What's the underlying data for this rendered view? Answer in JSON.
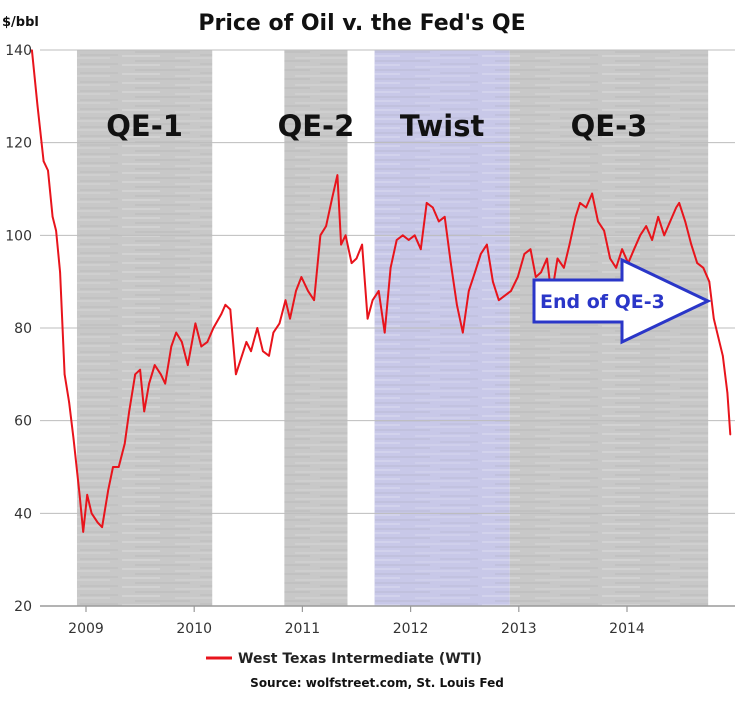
{
  "chart_data": {
    "type": "line",
    "title": "Price of Oil v. the Fed's QE",
    "ylabel": "$/bbl",
    "xlabel": "",
    "ylim": [
      20,
      140
    ],
    "y_ticks": [
      20,
      40,
      60,
      80,
      100,
      120,
      140
    ],
    "x_tick_labels": [
      "2009",
      "2010",
      "2011",
      "2012",
      "2013",
      "2014"
    ],
    "x_range": [
      "2008-07",
      "2014-12"
    ],
    "grid": "horizontal",
    "legend": "bottom-center",
    "series": [
      {
        "name": "West Texas Intermediate (WTI)",
        "color": "#e8141c",
        "points": [
          [
            "2008-07-01",
            140
          ],
          [
            "2008-07-20",
            128
          ],
          [
            "2008-08-10",
            116
          ],
          [
            "2008-08-25",
            114
          ],
          [
            "2008-09-10",
            104
          ],
          [
            "2008-09-22",
            101
          ],
          [
            "2008-10-05",
            92
          ],
          [
            "2008-10-20",
            70
          ],
          [
            "2008-11-05",
            64
          ],
          [
            "2008-11-20",
            56
          ],
          [
            "2008-12-10",
            44
          ],
          [
            "2008-12-22",
            36
          ],
          [
            "2009-01-05",
            44
          ],
          [
            "2009-01-20",
            40
          ],
          [
            "2009-02-10",
            38
          ],
          [
            "2009-02-25",
            37
          ],
          [
            "2009-03-15",
            45
          ],
          [
            "2009-04-01",
            50
          ],
          [
            "2009-04-20",
            50
          ],
          [
            "2009-05-10",
            55
          ],
          [
            "2009-05-25",
            62
          ],
          [
            "2009-06-15",
            70
          ],
          [
            "2009-07-01",
            71
          ],
          [
            "2009-07-15",
            62
          ],
          [
            "2009-08-01",
            68
          ],
          [
            "2009-08-20",
            72
          ],
          [
            "2009-09-10",
            70
          ],
          [
            "2009-09-25",
            68
          ],
          [
            "2009-10-15",
            76
          ],
          [
            "2009-11-01",
            79
          ],
          [
            "2009-11-20",
            77
          ],
          [
            "2009-12-10",
            72
          ],
          [
            "2010-01-05",
            81
          ],
          [
            "2010-01-25",
            76
          ],
          [
            "2010-02-15",
            77
          ],
          [
            "2010-03-05",
            80
          ],
          [
            "2010-04-01",
            83
          ],
          [
            "2010-04-15",
            85
          ],
          [
            "2010-05-01",
            84
          ],
          [
            "2010-05-20",
            70
          ],
          [
            "2010-06-10",
            74
          ],
          [
            "2010-06-25",
            77
          ],
          [
            "2010-07-10",
            75
          ],
          [
            "2010-08-01",
            80
          ],
          [
            "2010-08-20",
            75
          ],
          [
            "2010-09-10",
            74
          ],
          [
            "2010-09-25",
            79
          ],
          [
            "2010-10-15",
            81
          ],
          [
            "2010-11-05",
            86
          ],
          [
            "2010-11-20",
            82
          ],
          [
            "2010-12-10",
            88
          ],
          [
            "2010-12-28",
            91
          ],
          [
            "2011-01-20",
            88
          ],
          [
            "2011-02-10",
            86
          ],
          [
            "2011-03-01",
            100
          ],
          [
            "2011-03-20",
            102
          ],
          [
            "2011-04-10",
            108
          ],
          [
            "2011-04-28",
            113
          ],
          [
            "2011-05-10",
            98
          ],
          [
            "2011-05-25",
            100
          ],
          [
            "2011-06-15",
            94
          ],
          [
            "2011-07-01",
            95
          ],
          [
            "2011-07-20",
            98
          ],
          [
            "2011-08-08",
            82
          ],
          [
            "2011-08-25",
            86
          ],
          [
            "2011-09-15",
            88
          ],
          [
            "2011-10-05",
            79
          ],
          [
            "2011-10-25",
            93
          ],
          [
            "2011-11-15",
            99
          ],
          [
            "2011-12-05",
            100
          ],
          [
            "2011-12-25",
            99
          ],
          [
            "2012-01-15",
            100
          ],
          [
            "2012-02-05",
            97
          ],
          [
            "2012-02-25",
            107
          ],
          [
            "2012-03-15",
            106
          ],
          [
            "2012-04-05",
            103
          ],
          [
            "2012-04-25",
            104
          ],
          [
            "2012-05-15",
            94
          ],
          [
            "2012-06-05",
            85
          ],
          [
            "2012-06-25",
            79
          ],
          [
            "2012-07-15",
            88
          ],
          [
            "2012-08-05",
            92
          ],
          [
            "2012-08-25",
            96
          ],
          [
            "2012-09-15",
            98
          ],
          [
            "2012-10-05",
            90
          ],
          [
            "2012-10-25",
            86
          ],
          [
            "2012-11-15",
            87
          ],
          [
            "2012-12-05",
            88
          ],
          [
            "2012-12-28",
            91
          ],
          [
            "2013-01-20",
            96
          ],
          [
            "2013-02-10",
            97
          ],
          [
            "2013-02-28",
            91
          ],
          [
            "2013-03-15",
            92
          ],
          [
            "2013-04-05",
            95
          ],
          [
            "2013-04-20",
            87
          ],
          [
            "2013-05-10",
            95
          ],
          [
            "2013-06-01",
            93
          ],
          [
            "2013-06-20",
            98
          ],
          [
            "2013-07-10",
            104
          ],
          [
            "2013-07-25",
            107
          ],
          [
            "2013-08-15",
            106
          ],
          [
            "2013-09-05",
            109
          ],
          [
            "2013-09-25",
            103
          ],
          [
            "2013-10-15",
            101
          ],
          [
            "2013-11-05",
            95
          ],
          [
            "2013-11-25",
            93
          ],
          [
            "2013-12-15",
            97
          ],
          [
            "2014-01-05",
            94
          ],
          [
            "2014-01-25",
            97
          ],
          [
            "2014-02-15",
            100
          ],
          [
            "2014-03-05",
            102
          ],
          [
            "2014-03-25",
            99
          ],
          [
            "2014-04-15",
            104
          ],
          [
            "2014-05-05",
            100
          ],
          [
            "2014-05-25",
            103
          ],
          [
            "2014-06-15",
            106
          ],
          [
            "2014-06-25",
            107
          ],
          [
            "2014-07-15",
            103
          ],
          [
            "2014-08-05",
            98
          ],
          [
            "2014-08-25",
            94
          ],
          [
            "2014-09-15",
            93
          ],
          [
            "2014-10-05",
            90
          ],
          [
            "2014-10-20",
            82
          ],
          [
            "2014-11-05",
            78
          ],
          [
            "2014-11-20",
            74
          ],
          [
            "2014-12-05",
            66
          ],
          [
            "2014-12-15",
            57
          ]
        ]
      }
    ],
    "shaded_periods": [
      {
        "label": "QE-1",
        "start": "2008-12",
        "end": "2010-03",
        "color": "#c8c8c8"
      },
      {
        "label": "QE-2",
        "start": "2010-11",
        "end": "2011-06",
        "color": "#c8c8c8"
      },
      {
        "label": "Twist",
        "start": "2011-09",
        "end": "2012-12",
        "color": "#c8c8e8"
      },
      {
        "label": "QE-3",
        "start": "2012-12",
        "end": "2014-10",
        "color": "#c8c8c8"
      }
    ],
    "annotations": [
      {
        "text": "End of QE-3",
        "arrow_to": "2014-10",
        "color": "#2a36c8"
      }
    ],
    "source": "Source: wolfstreet.com, St. Louis Fed"
  }
}
